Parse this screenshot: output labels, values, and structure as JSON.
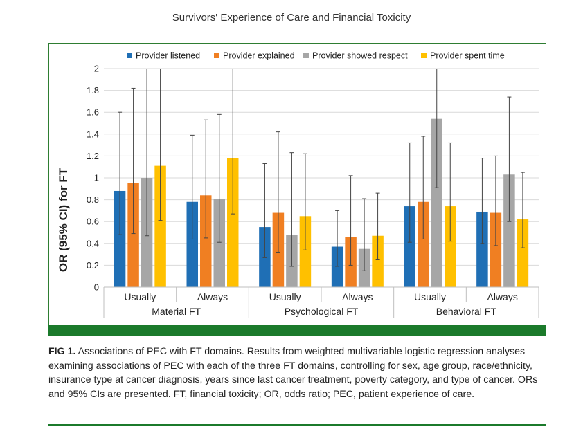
{
  "page_title": "Survivors' Experience of Care and Financial Toxicity",
  "caption": {
    "label": "FIG 1.",
    "text": "Associations of PEC with FT domains. Results from weighted multivariable logistic regression analyses examining associations of PEC with each of the three FT domains, controlling for sex, age group, race/ethnicity, insurance type at cancer diagnosis, years since last cancer treatment, poverty category, and type of cancer. ORs and 95% CIs are presented. FT, financial toxicity; OR, odds ratio; PEC, patient experience of care."
  },
  "colors": {
    "frame": "#2e7d32",
    "band": "#1b7a2b"
  },
  "chart_data": {
    "type": "bar",
    "ylabel": "OR (95% CI) for FT",
    "ylim": [
      0,
      2
    ],
    "yticks": [
      "0",
      "0.2",
      "0.4",
      "0.6",
      "0.8",
      "1",
      "1.2",
      "1.4",
      "1.6",
      "1.8",
      "2"
    ],
    "grid": true,
    "legend_position": "top",
    "groups": [
      "Material FT",
      "Psychological FT",
      "Behavioral FT"
    ],
    "categories": [
      "Usually",
      "Always",
      "Usually",
      "Always",
      "Usually",
      "Always"
    ],
    "series": [
      {
        "name": "Provider listened",
        "color": "#1f6fb5",
        "values": [
          0.88,
          0.78,
          0.55,
          0.37,
          0.74,
          0.69
        ],
        "ci_low": [
          0.48,
          0.44,
          0.27,
          0.19,
          0.41,
          0.4
        ],
        "ci_high": [
          1.6,
          1.39,
          1.13,
          0.7,
          1.32,
          1.18
        ]
      },
      {
        "name": "Provider explained",
        "color": "#f07f22",
        "values": [
          0.95,
          0.84,
          0.68,
          0.46,
          0.78,
          0.68
        ],
        "ci_low": [
          0.49,
          0.45,
          0.32,
          0.2,
          0.44,
          0.38
        ],
        "ci_high": [
          1.82,
          1.53,
          1.42,
          1.02,
          1.38,
          1.2
        ]
      },
      {
        "name": "Provider showed respect",
        "color": "#a6a6a6",
        "values": [
          1.0,
          0.81,
          0.48,
          0.35,
          1.54,
          1.03
        ],
        "ci_low": [
          0.47,
          0.41,
          0.19,
          0.15,
          0.91,
          0.6
        ],
        "ci_high": [
          2.0,
          1.58,
          1.23,
          0.81,
          2.0,
          1.74
        ]
      },
      {
        "name": "Provider spent time",
        "color": "#ffc000",
        "values": [
          1.11,
          1.18,
          0.65,
          0.47,
          0.74,
          0.62
        ],
        "ci_low": [
          0.61,
          0.67,
          0.34,
          0.25,
          0.42,
          0.36
        ],
        "ci_high": [
          2.0,
          2.0,
          1.22,
          0.86,
          1.32,
          1.05
        ]
      }
    ]
  }
}
